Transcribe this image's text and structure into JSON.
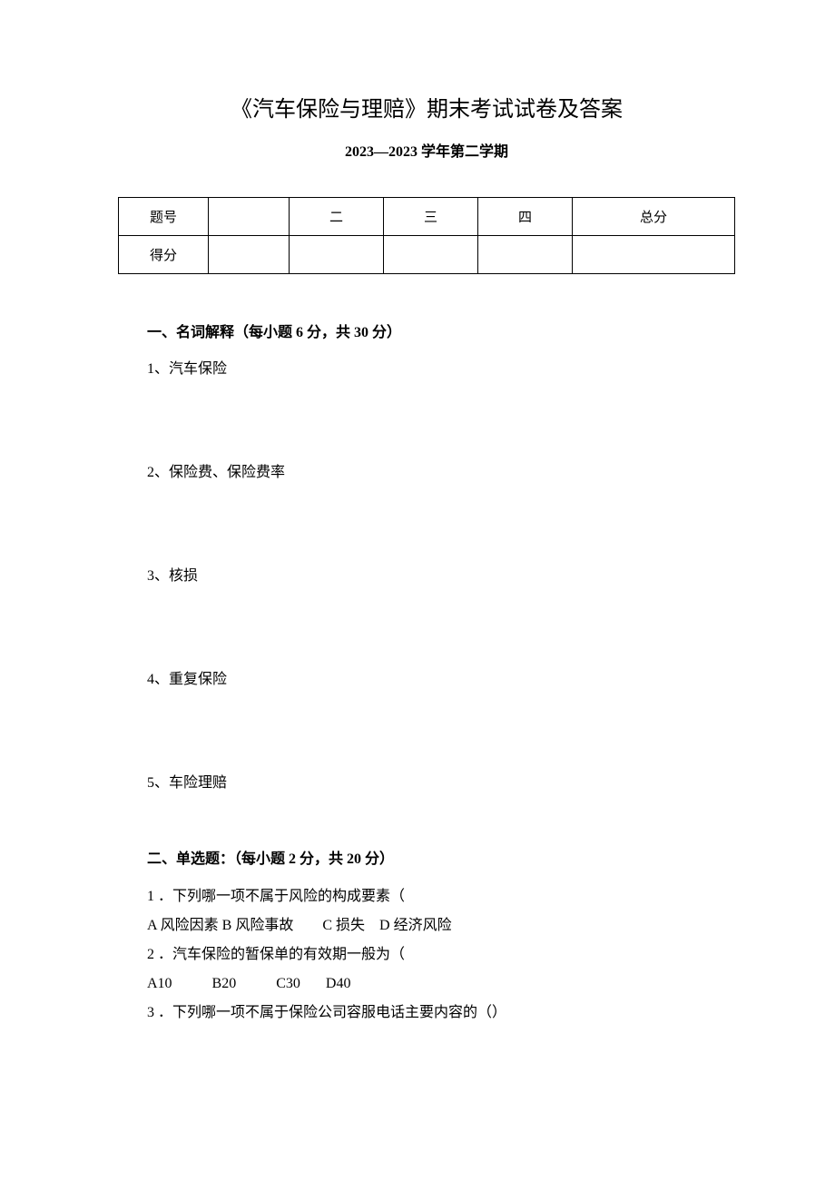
{
  "title": "《汽车保险与理赔》期末考试试卷及答案",
  "subtitle": "2023—2023 学年第二学期",
  "score_table": {
    "headers": [
      "题号",
      "",
      "二",
      "三",
      "四",
      "总分"
    ],
    "row2_label": "得分"
  },
  "section1": {
    "heading": "一、名词解释（每小题 6 分，共 30 分）",
    "items": [
      "1、汽车保险",
      "2、保险费、保险费率",
      "3、核损",
      "4、重复保险",
      "5、车险理赔"
    ]
  },
  "section2": {
    "heading": "二、单选题：（每小题 2 分，共 20 分）",
    "questions": [
      {
        "q": "1 ．下列哪一项不属于风险的构成要素（",
        "opts": "A 风险因素 B 风险事故        C 损失    D 经济风险"
      },
      {
        "q": "2 ．汽车保险的暂保单的有效期一般为（",
        "opts": "A10           B20           C30       D40"
      },
      {
        "q": "3 ．下列哪一项不属于保险公司容服电话主要内容的（）",
        "opts": ""
      }
    ]
  }
}
